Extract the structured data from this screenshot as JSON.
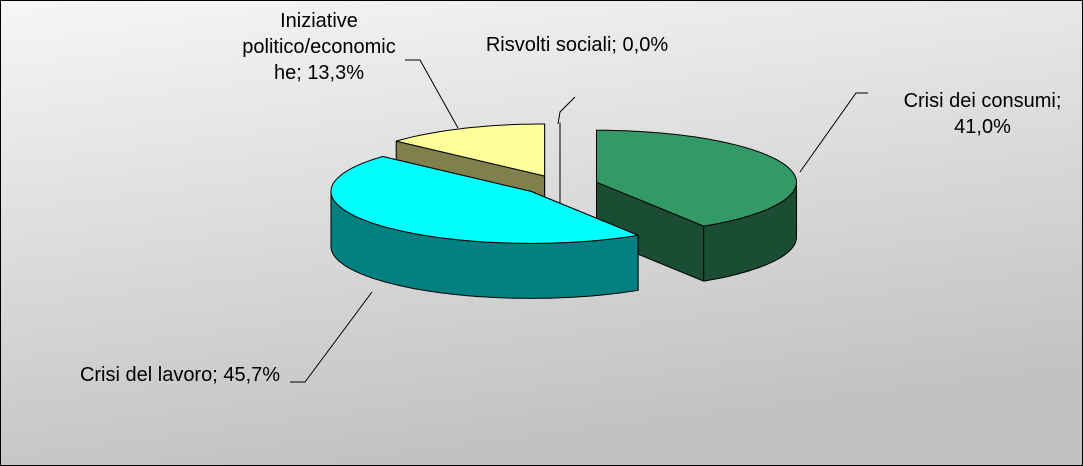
{
  "chart_data": {
    "type": "pie",
    "values": [
      41.0,
      45.7,
      13.3,
      0.0
    ],
    "value_labels": [
      "Crisi dei consumi; 41,0%",
      "Crisi del lavoro; 45,7%",
      "Iniziative politico/economiche; 13,3%",
      "Risvolti sociali; 0,0%"
    ],
    "colors": [
      "#339966",
      "#00ffff",
      "#ffff99",
      "#ffffff"
    ]
  }
}
